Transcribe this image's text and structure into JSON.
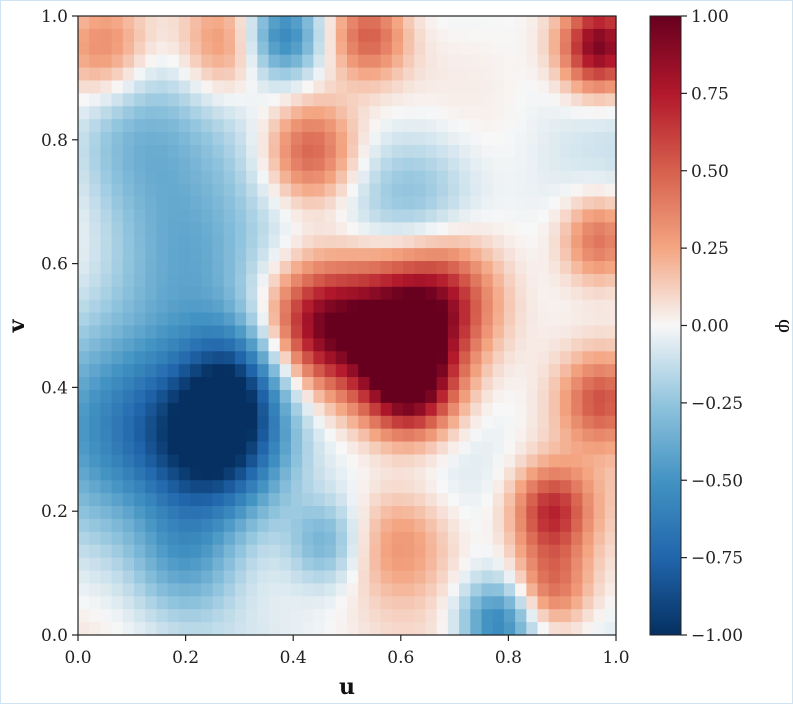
{
  "chart_data": {
    "type": "heatmap",
    "title": "",
    "xlabel": "u",
    "ylabel": "v",
    "xlim": [
      0.0,
      1.0
    ],
    "ylim": [
      0.0,
      1.0
    ],
    "x_ticks": [
      "0.0",
      "0.2",
      "0.4",
      "0.6",
      "0.8",
      "1.0"
    ],
    "y_ticks": [
      "0.0",
      "0.2",
      "0.4",
      "0.6",
      "0.8",
      "1.0"
    ],
    "colorbar": {
      "label": "φ",
      "range": [
        -1.0,
        1.0
      ],
      "colormap": "diverging blue-white-red",
      "ticks": [
        "−1.00",
        "−0.75",
        "−0.50",
        "−0.25",
        "0.00",
        "0.25",
        "0.50",
        "0.75",
        "1.00"
      ]
    },
    "grid": false,
    "features": [
      {
        "u": 0.27,
        "v": 0.31,
        "value": -0.95,
        "r": 0.09
      },
      {
        "u": 0.12,
        "v": 0.34,
        "value": -0.55,
        "r": 0.12
      },
      {
        "u": 0.3,
        "v": 0.42,
        "value": -0.5,
        "r": 0.07
      },
      {
        "u": 0.38,
        "v": 0.97,
        "value": -0.6,
        "r": 0.05
      },
      {
        "u": 0.1,
        "v": 0.8,
        "value": -0.35,
        "r": 0.1
      },
      {
        "u": 0.2,
        "v": 0.6,
        "value": -0.3,
        "r": 0.1
      },
      {
        "u": 0.62,
        "v": 0.7,
        "value": -0.4,
        "r": 0.09
      },
      {
        "u": 0.78,
        "v": 0.02,
        "value": -0.6,
        "r": 0.05
      },
      {
        "u": 0.46,
        "v": 0.15,
        "value": -0.35,
        "r": 0.05
      },
      {
        "u": 0.2,
        "v": 0.12,
        "value": -0.35,
        "r": 0.07
      },
      {
        "u": 0.58,
        "v": 0.49,
        "value": 0.95,
        "r": 0.08
      },
      {
        "u": 0.62,
        "v": 0.4,
        "value": 0.9,
        "r": 0.06
      },
      {
        "u": 0.44,
        "v": 0.5,
        "value": 0.75,
        "r": 0.07
      },
      {
        "u": 0.68,
        "v": 0.54,
        "value": 0.6,
        "r": 0.07
      },
      {
        "u": 0.43,
        "v": 0.78,
        "value": 0.55,
        "r": 0.06
      },
      {
        "u": 0.97,
        "v": 0.95,
        "value": 0.95,
        "r": 0.05
      },
      {
        "u": 0.05,
        "v": 0.95,
        "value": 0.4,
        "r": 0.06
      },
      {
        "u": 0.54,
        "v": 0.97,
        "value": 0.5,
        "r": 0.05
      },
      {
        "u": 0.88,
        "v": 0.2,
        "value": 0.65,
        "r": 0.05
      },
      {
        "u": 0.88,
        "v": 0.08,
        "value": 0.45,
        "r": 0.05
      },
      {
        "u": 0.97,
        "v": 0.64,
        "value": 0.5,
        "r": 0.05
      },
      {
        "u": 0.97,
        "v": 0.38,
        "value": 0.45,
        "r": 0.05
      },
      {
        "u": 0.6,
        "v": 0.15,
        "value": 0.35,
        "r": 0.07
      },
      {
        "u": 0.27,
        "v": 0.95,
        "value": 0.35,
        "r": 0.06
      },
      {
        "u": 0.1,
        "v": 0.17,
        "value": 0.0,
        "r": 0.04
      }
    ]
  }
}
